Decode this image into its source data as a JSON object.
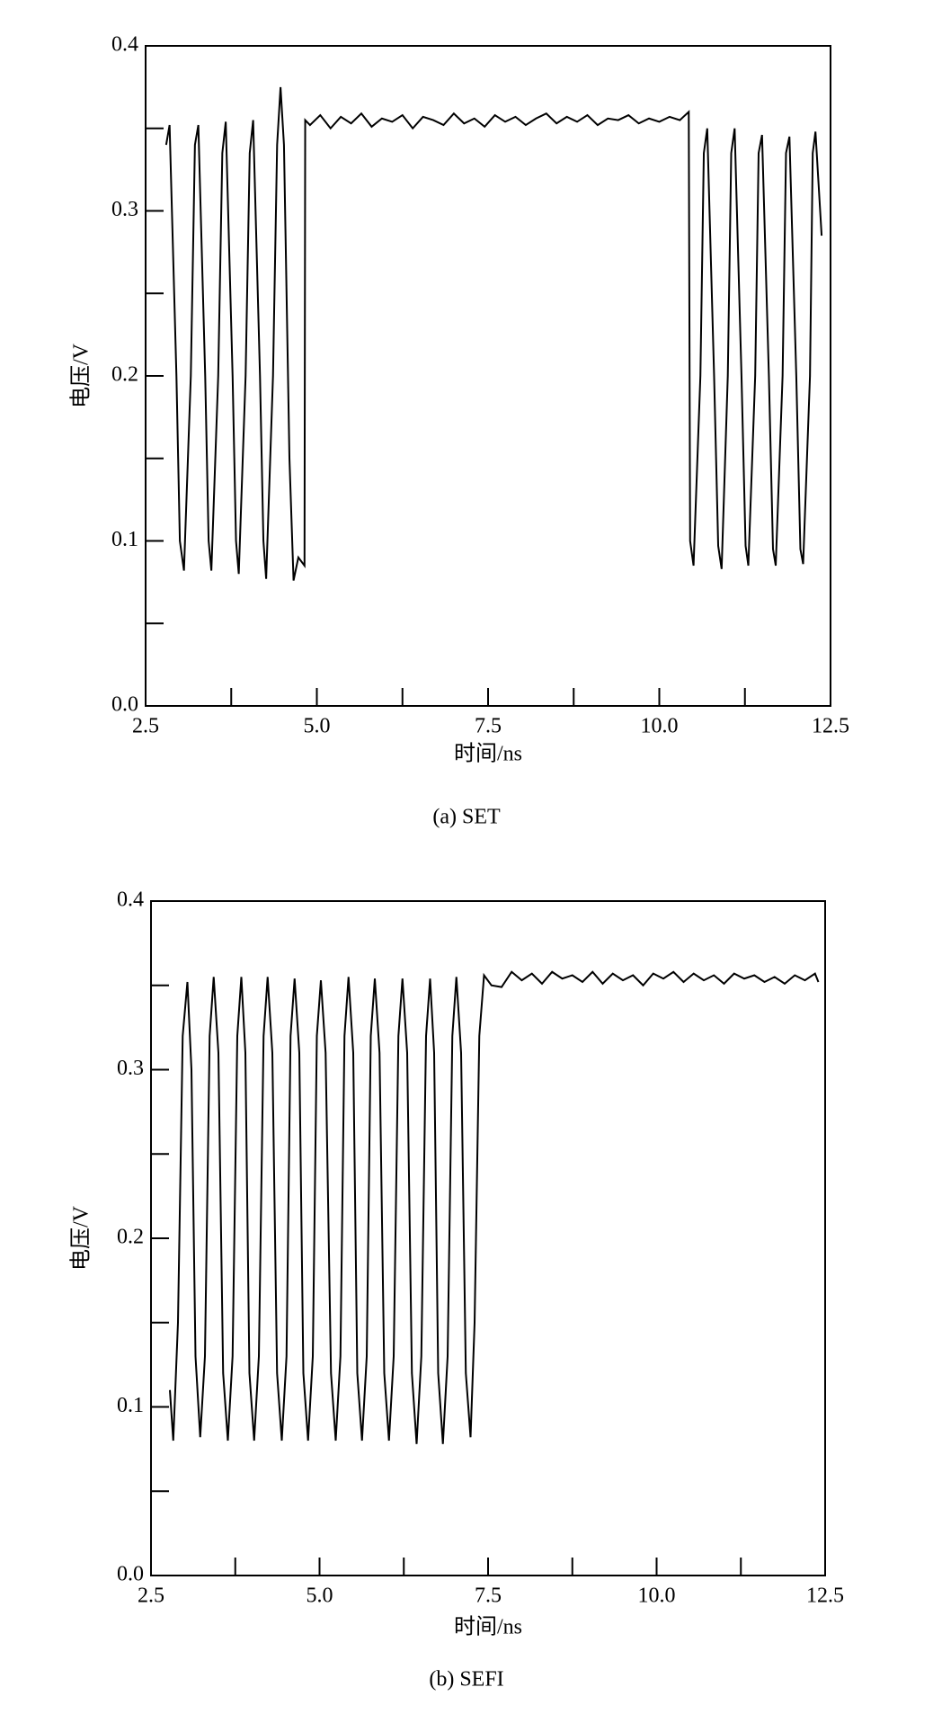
{
  "chart_data": [
    {
      "type": "line",
      "caption": "(a) SET",
      "xlabel": "时间/ns",
      "ylabel": "电压/V",
      "xlim": [
        2.5,
        12.5
      ],
      "ylim": [
        0,
        0.4
      ],
      "xticks": [
        2.5,
        {
          "value": 5,
          "label": "5.0"
        },
        7.5,
        {
          "value": 10,
          "label": "10.0"
        },
        12.5
      ],
      "yticks": [
        {
          "value": 0,
          "label": "0.0"
        },
        0.1,
        0.2,
        0.3,
        0.4
      ],
      "xticks_minor": [
        3.75,
        6.25,
        8.75,
        11.25
      ],
      "yticks_minor": [
        0.05,
        0.15,
        0.25,
        0.35
      ],
      "series": [
        {
          "color": "#000000",
          "x": [
            2.8,
            2.85,
            2.95,
            3.0,
            3.06,
            3.16,
            3.22,
            3.27,
            3.37,
            3.42,
            3.46,
            3.56,
            3.62,
            3.67,
            3.77,
            3.82,
            3.86,
            3.96,
            4.02,
            4.07,
            4.17,
            4.22,
            4.26,
            4.36,
            4.42,
            4.47,
            4.52,
            4.6,
            4.66,
            4.73,
            4.82,
            4.83,
            4.9,
            5.05,
            5.2,
            5.35,
            5.5,
            5.65,
            5.8,
            5.95,
            6.1,
            6.25,
            6.4,
            6.55,
            6.7,
            6.85,
            7.0,
            7.15,
            7.3,
            7.45,
            7.6,
            7.75,
            7.9,
            8.05,
            8.2,
            8.35,
            8.5,
            8.65,
            8.8,
            8.95,
            9.1,
            9.25,
            9.4,
            9.55,
            9.7,
            9.85,
            10.0,
            10.15,
            10.3,
            10.43,
            10.45,
            10.5,
            10.6,
            10.65,
            10.7,
            10.8,
            10.86,
            10.91,
            11.0,
            11.05,
            11.1,
            11.2,
            11.26,
            11.3,
            11.4,
            11.45,
            11.5,
            11.6,
            11.66,
            11.7,
            11.8,
            11.85,
            11.9,
            12.0,
            12.06,
            12.1,
            12.2,
            12.24,
            12.28,
            12.37
          ],
          "values": [
            0.34,
            0.352,
            0.2,
            0.1,
            0.082,
            0.2,
            0.34,
            0.352,
            0.2,
            0.1,
            0.082,
            0.2,
            0.335,
            0.354,
            0.2,
            0.1,
            0.08,
            0.2,
            0.335,
            0.355,
            0.2,
            0.1,
            0.077,
            0.2,
            0.34,
            0.375,
            0.34,
            0.15,
            0.076,
            0.09,
            0.085,
            0.355,
            0.352,
            0.358,
            0.35,
            0.357,
            0.353,
            0.359,
            0.351,
            0.356,
            0.354,
            0.358,
            0.35,
            0.357,
            0.355,
            0.352,
            0.359,
            0.353,
            0.356,
            0.351,
            0.358,
            0.354,
            0.357,
            0.352,
            0.356,
            0.359,
            0.353,
            0.357,
            0.354,
            0.358,
            0.352,
            0.356,
            0.355,
            0.358,
            0.353,
            0.356,
            0.354,
            0.357,
            0.355,
            0.36,
            0.1,
            0.085,
            0.2,
            0.335,
            0.35,
            0.2,
            0.097,
            0.083,
            0.2,
            0.335,
            0.35,
            0.2,
            0.097,
            0.085,
            0.2,
            0.335,
            0.346,
            0.2,
            0.095,
            0.085,
            0.2,
            0.335,
            0.345,
            0.2,
            0.095,
            0.086,
            0.2,
            0.335,
            0.348,
            0.285
          ]
        }
      ]
    },
    {
      "type": "line",
      "caption": "(b) SEFI",
      "xlabel": "时间/ns",
      "ylabel": "电压/V",
      "xlim": [
        2.5,
        12.5
      ],
      "ylim": [
        0,
        0.4
      ],
      "xticks": [
        2.5,
        {
          "value": 5,
          "label": "5.0"
        },
        7.5,
        {
          "value": 10,
          "label": "10.0"
        },
        12.5
      ],
      "yticks": [
        {
          "value": 0,
          "label": "0.0"
        },
        0.1,
        0.2,
        0.3,
        0.4
      ],
      "xticks_minor": [
        3.75,
        6.25,
        8.75,
        11.25
      ],
      "yticks_minor": [
        0.05,
        0.15,
        0.25,
        0.35
      ],
      "series": [
        {
          "color": "#000000",
          "x": [
            2.78,
            2.83,
            2.9,
            2.97,
            3.04,
            3.1,
            3.16,
            3.23,
            3.3,
            3.37,
            3.43,
            3.5,
            3.57,
            3.64,
            3.71,
            3.78,
            3.84,
            3.9,
            3.96,
            4.03,
            4.1,
            4.17,
            4.23,
            4.3,
            4.37,
            4.44,
            4.51,
            4.57,
            4.63,
            4.7,
            4.76,
            4.83,
            4.9,
            4.96,
            5.02,
            5.09,
            5.17,
            5.24,
            5.31,
            5.37,
            5.43,
            5.5,
            5.56,
            5.63,
            5.7,
            5.76,
            5.82,
            5.89,
            5.96,
            6.03,
            6.1,
            6.17,
            6.23,
            6.3,
            6.37,
            6.44,
            6.51,
            6.58,
            6.64,
            6.7,
            6.76,
            6.83,
            6.9,
            6.97,
            7.03,
            7.1,
            7.17,
            7.24,
            7.3,
            7.37,
            7.44,
            7.55,
            7.7,
            7.85,
            8.0,
            8.15,
            8.3,
            8.45,
            8.6,
            8.75,
            8.9,
            9.05,
            9.2,
            9.35,
            9.5,
            9.65,
            9.8,
            9.95,
            10.1,
            10.25,
            10.4,
            10.55,
            10.7,
            10.85,
            11.0,
            11.15,
            11.3,
            11.45,
            11.6,
            11.75,
            11.9,
            12.05,
            12.2,
            12.35,
            12.4
          ],
          "values": [
            0.11,
            0.08,
            0.15,
            0.32,
            0.352,
            0.3,
            0.13,
            0.082,
            0.13,
            0.32,
            0.355,
            0.31,
            0.12,
            0.08,
            0.13,
            0.32,
            0.355,
            0.31,
            0.12,
            0.08,
            0.13,
            0.32,
            0.355,
            0.31,
            0.12,
            0.08,
            0.13,
            0.32,
            0.354,
            0.31,
            0.12,
            0.08,
            0.13,
            0.32,
            0.353,
            0.31,
            0.12,
            0.08,
            0.13,
            0.32,
            0.355,
            0.31,
            0.12,
            0.08,
            0.13,
            0.32,
            0.354,
            0.31,
            0.12,
            0.08,
            0.13,
            0.32,
            0.354,
            0.31,
            0.12,
            0.078,
            0.13,
            0.32,
            0.354,
            0.31,
            0.12,
            0.078,
            0.13,
            0.32,
            0.355,
            0.31,
            0.12,
            0.082,
            0.15,
            0.32,
            0.356,
            0.35,
            0.349,
            0.358,
            0.353,
            0.357,
            0.351,
            0.358,
            0.354,
            0.356,
            0.352,
            0.358,
            0.351,
            0.357,
            0.353,
            0.356,
            0.35,
            0.357,
            0.354,
            0.358,
            0.352,
            0.357,
            0.353,
            0.356,
            0.351,
            0.357,
            0.354,
            0.356,
            0.352,
            0.355,
            0.351,
            0.356,
            0.353,
            0.357,
            0.352
          ]
        }
      ]
    }
  ]
}
